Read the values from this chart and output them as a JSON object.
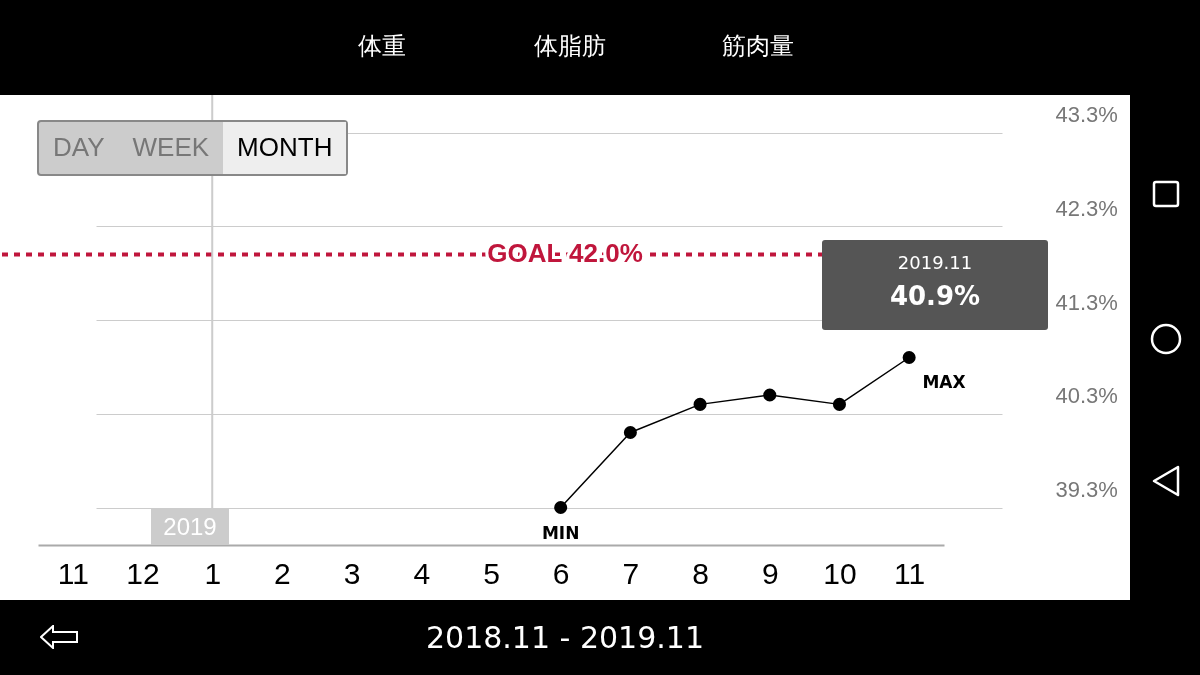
{
  "chart_data": {
    "type": "line",
    "categories": [
      "11",
      "12",
      "1",
      "2",
      "3",
      "4",
      "5",
      "6",
      "7",
      "8",
      "9",
      "10",
      "11"
    ],
    "series": [
      {
        "color": "#000000",
        "values": [
          null,
          null,
          null,
          null,
          null,
          null,
          null,
          39.3,
          40.1,
          40.4,
          40.5,
          40.4,
          40.9
        ]
      }
    ],
    "ylim": [
      38.9,
      43.7
    ],
    "yticks": [
      {
        "value": 39.3,
        "label": "39.3%"
      },
      {
        "value": 40.3,
        "label": "40.3%"
      },
      {
        "value": 41.3,
        "label": "41.3%"
      },
      {
        "value": 42.3,
        "label": "42.3%"
      },
      {
        "value": 43.3,
        "label": "43.3%"
      }
    ],
    "grid": "y",
    "marker": "circle",
    "line_style": "solid",
    "ref_lines": [
      {
        "axis": "y",
        "value": 42.0,
        "label": "GOAL 42.0%",
        "color": "#c0163c",
        "line_style": "dashed"
      },
      {
        "axis": "x",
        "value": "1",
        "label": "2019",
        "color": "#cccccc"
      }
    ],
    "annotations": [
      "体重",
      "体脂肪",
      "筋肉量",
      "DAY",
      "WEEK",
      "MONTH",
      "2018.11 - 2019.11",
      "2019.11",
      "40.9%",
      "MAX",
      {
        "text": "MIN",
        "x": "6",
        "y": 39.3
      }
    ]
  }
}
